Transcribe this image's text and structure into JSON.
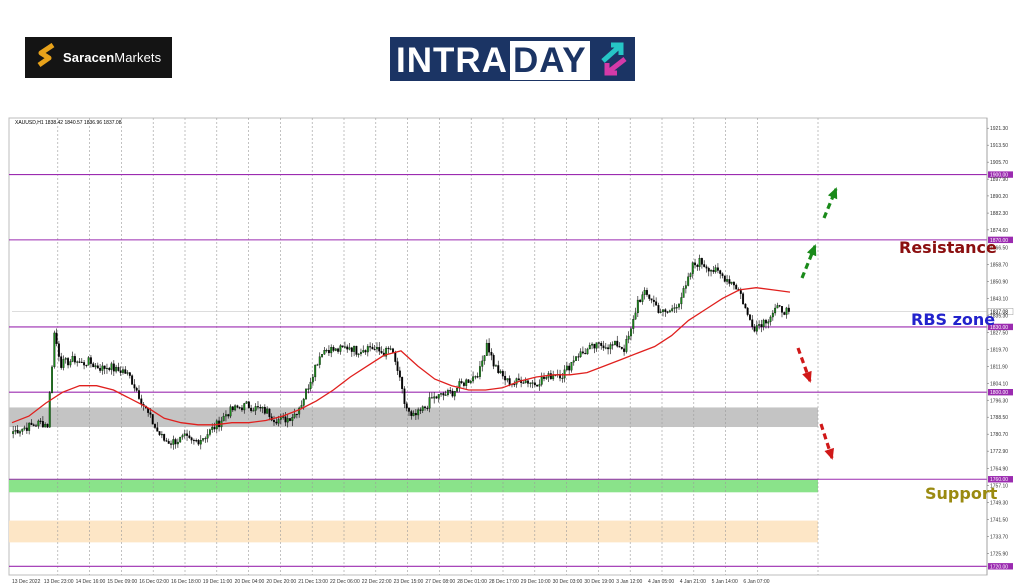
{
  "header": {
    "brand_bold": "Saracen",
    "brand_rest": "Markets",
    "intraday_a": "INTRA",
    "intraday_b": "DAY"
  },
  "chart_data": {
    "type": "candlestick",
    "symbol_line": "XAUUSD,H1  1838.42 1840.57 1836.96 1837.08",
    "ylim": [
      1716,
      1926
    ],
    "y_ticks": [
      1921.3,
      1913.5,
      1905.7,
      1897.9,
      1890.2,
      1882.3,
      1874.6,
      1866.5,
      1858.7,
      1850.9,
      1843.1,
      1835.3,
      1827.5,
      1819.7,
      1811.9,
      1804.1,
      1796.3,
      1788.5,
      1780.7,
      1772.9,
      1764.9,
      1757.1,
      1749.3,
      1741.5,
      1733.7,
      1725.9
    ],
    "x_ticks": [
      "13 Dec 2022",
      "13 Dec 23:00",
      "14 Dec 16:00",
      "15 Dec 09:00",
      "16 Dec 02:00",
      "16 Dec 18:00",
      "19 Dec 11:00",
      "20 Dec 04:00",
      "20 Dec 20:00",
      "21 Dec 13:00",
      "22 Dec 06:00",
      "22 Dec 22:00",
      "23 Dec 15:00",
      "27 Dec 08:00",
      "28 Dec 01:00",
      "28 Dec 17:00",
      "29 Dec 10:00",
      "30 Dec 03:00",
      "30 Dec 19:00",
      "3 Jan 12:00",
      "4 Jan 05:00",
      "4 Jan 21:00",
      "5 Jan 14:00",
      "6 Jan 07:00"
    ],
    "price_path": [
      1782,
      1783,
      1784,
      1785,
      1786,
      1785,
      1827,
      1813,
      1814,
      1815,
      1813,
      1814,
      1812,
      1811,
      1812,
      1810,
      1810,
      1807,
      1801,
      1794,
      1788,
      1782,
      1778,
      1777,
      1778,
      1779,
      1777,
      1778,
      1780,
      1783,
      1786,
      1790,
      1792,
      1793,
      1794,
      1793,
      1792,
      1791,
      1788,
      1787,
      1788,
      1790,
      1795,
      1803,
      1812,
      1819,
      1820,
      1819,
      1820,
      1821,
      1819,
      1820,
      1821,
      1819,
      1818,
      1820,
      1810,
      1795,
      1788,
      1790,
      1793,
      1797,
      1798,
      1799,
      1800,
      1803,
      1805,
      1807,
      1810,
      1823,
      1813,
      1808,
      1805,
      1804,
      1806,
      1805,
      1804,
      1806,
      1807,
      1809,
      1808,
      1812,
      1817,
      1818,
      1820,
      1821,
      1822,
      1821,
      1822,
      1820,
      1828,
      1842,
      1845,
      1843,
      1838,
      1836,
      1838,
      1842,
      1848,
      1858,
      1860,
      1858,
      1856,
      1854,
      1852,
      1850,
      1845,
      1835,
      1830,
      1832,
      1834,
      1838,
      1838,
      1837
    ],
    "ma_path": [
      1786,
      1789,
      1795,
      1800,
      1803,
      1803,
      1801,
      1797,
      1793,
      1788,
      1786,
      1785,
      1785,
      1786,
      1786,
      1787,
      1789,
      1792,
      1796,
      1801,
      1807,
      1812,
      1817,
      1819,
      1812,
      1806,
      1803,
      1801,
      1801,
      1802,
      1805,
      1807,
      1808,
      1808,
      1809,
      1812,
      1815,
      1818,
      1821,
      1826,
      1833,
      1838,
      1843,
      1847,
      1848,
      1847,
      1846
    ],
    "levels": [
      {
        "price": 1900.0,
        "label": "1900.00"
      },
      {
        "price": 1870.0,
        "label": "1870.00"
      },
      {
        "price": 1830.0,
        "label": "1830.00"
      },
      {
        "price": 1800.0,
        "label": "1800.00"
      },
      {
        "price": 1760.0,
        "label": "1760.00"
      },
      {
        "price": 1720.0,
        "label": "1720.00"
      }
    ],
    "current_price": {
      "price": 1837.08,
      "label": "1837.08"
    },
    "zones": [
      {
        "name": "grey",
        "from": 1784,
        "to": 1793,
        "color": "#c4c4c4"
      },
      {
        "name": "green",
        "from": 1754,
        "to": 1760,
        "color": "#8ae38a"
      },
      {
        "name": "peach",
        "from": 1731,
        "to": 1741,
        "color": "#fde6c6"
      }
    ],
    "annotations": {
      "resistance": "Resistance",
      "rbs": "RBS zone",
      "support": "Support"
    },
    "colors": {
      "up": "#1b8a1b",
      "down": "#000000",
      "ma": "#e0201e",
      "level": "#9b2bb0",
      "resistance": "#8b0f10",
      "rbs": "#2222cc",
      "support": "#9a8a10",
      "arrow_up": "#1a8a1a",
      "arrow_down": "#d01818"
    }
  }
}
